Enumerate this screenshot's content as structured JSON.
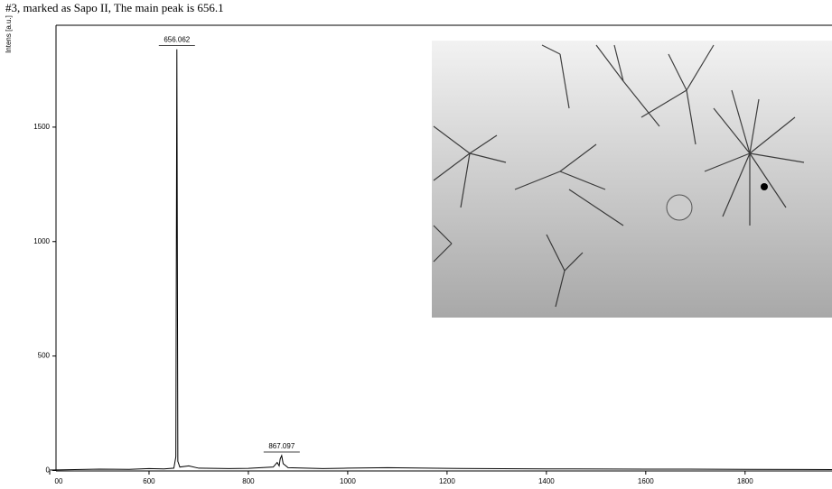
{
  "chart_data": {
    "type": "line",
    "title": "#3, marked as Sapo II,  The main peak is 656.1",
    "y_label": "Intens [a.u.]",
    "color": "#000000",
    "x": [
      400,
      450,
      500,
      560,
      600,
      630,
      650,
      654,
      656.062,
      658,
      662,
      680,
      700,
      760,
      800,
      850,
      858,
      862,
      864,
      867.097,
      870,
      880,
      950,
      1000,
      1080,
      1200,
      1400,
      1600,
      1800,
      1975
    ],
    "values": [
      2,
      4,
      6,
      5,
      8,
      7,
      10,
      60,
      1840,
      40,
      15,
      20,
      10,
      8,
      9,
      15,
      35,
      20,
      50,
      65,
      30,
      12,
      8,
      10,
      12,
      9,
      7,
      6,
      5,
      4
    ],
    "peaks": [
      {
        "x": 656.062,
        "y": 1840
      },
      {
        "x": 867.097,
        "y": 65
      }
    ],
    "xlim": [
      400,
      1975
    ],
    "ylim": [
      -10,
      1945
    ],
    "xticks": [
      {
        "value": 400,
        "label": "00"
      },
      600,
      800,
      1000,
      1200,
      1400,
      1600,
      1800
    ],
    "yticks": [
      0,
      500,
      1000,
      1500
    ]
  }
}
